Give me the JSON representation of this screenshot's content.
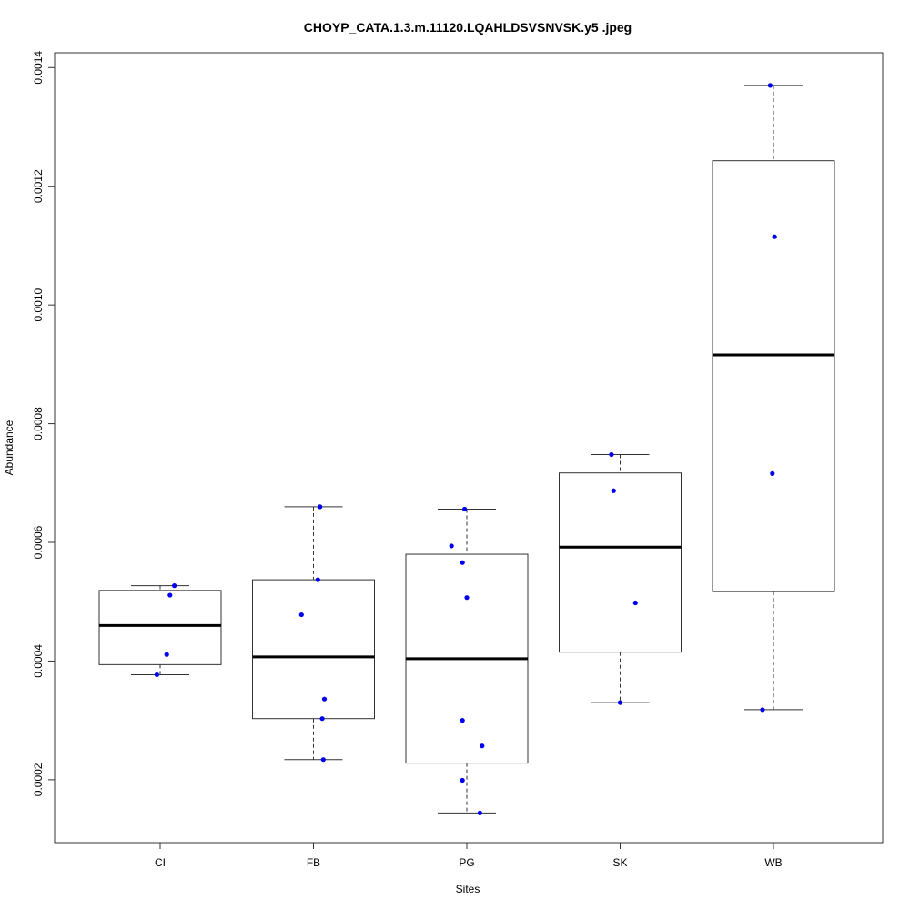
{
  "chart_data": {
    "type": "box",
    "title": "CHOYP_CATA.1.3.m.11120.LQAHLDSVSNVSK.y5 .jpeg",
    "xlabel": "Sites",
    "ylabel": "Abundance",
    "ylim": [
      9.4e-05,
      0.001425
    ],
    "yticks": [
      "0.0002",
      "0.0004",
      "0.0006",
      "0.0008",
      "0.0010",
      "0.0012",
      "0.0014"
    ],
    "categories": [
      "CI",
      "FB",
      "PG",
      "SK",
      "WB"
    ],
    "boxes": [
      {
        "name": "CI",
        "whisker_low": 0.000377,
        "q1": 0.000394,
        "median": 0.00046,
        "q3": 0.000519,
        "whisker_high": 0.000527,
        "points": [
          0.000527,
          0.000511,
          0.000411,
          0.000377
        ]
      },
      {
        "name": "FB",
        "whisker_low": 0.000234,
        "q1": 0.000303,
        "median": 0.000407,
        "q3": 0.000537,
        "whisker_high": 0.00066,
        "points": [
          0.00066,
          0.000537,
          0.000478,
          0.000336,
          0.000303,
          0.000234
        ]
      },
      {
        "name": "PG",
        "whisker_low": 0.000144,
        "q1": 0.000228,
        "median": 0.000404,
        "q3": 0.00058,
        "whisker_high": 0.000656,
        "points": [
          0.000656,
          0.000594,
          0.000566,
          0.000507,
          0.0003,
          0.000257,
          0.000199,
          0.000144
        ]
      },
      {
        "name": "SK",
        "whisker_low": 0.00033,
        "q1": 0.000415,
        "median": 0.000592,
        "q3": 0.000717,
        "whisker_high": 0.000748,
        "points": [
          0.000748,
          0.000687,
          0.000498,
          0.00033
        ]
      },
      {
        "name": "WB",
        "whisker_low": 0.000318,
        "q1": 0.000517,
        "median": 0.000916,
        "q3": 0.001243,
        "whisker_high": 0.00137,
        "points": [
          0.00137,
          0.001115,
          0.000716,
          0.000318
        ]
      }
    ],
    "point_color": "#0000ee",
    "grid": false
  }
}
